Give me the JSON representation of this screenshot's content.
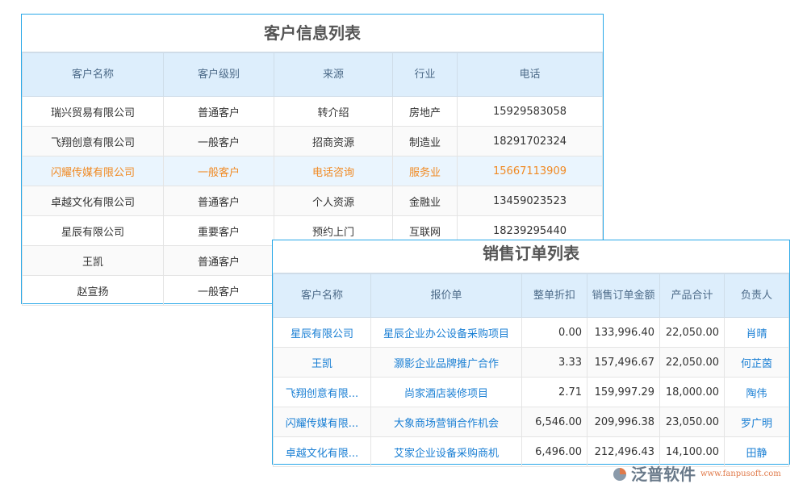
{
  "customer_table": {
    "title": "客户信息列表",
    "headers": [
      "客户名称",
      "客户级别",
      "来源",
      "行业",
      "电话"
    ],
    "rows": [
      [
        "瑞兴贸易有限公司",
        "普通客户",
        "转介绍",
        "房地产",
        "15929583058"
      ],
      [
        "飞翔创意有限公司",
        "一般客户",
        "招商资源",
        "制造业",
        "18291702324"
      ],
      [
        "闪耀传媒有限公司",
        "一般客户",
        "电话咨询",
        "服务业",
        "15667113909"
      ],
      [
        "卓越文化有限公司",
        "普通客户",
        "个人资源",
        "金融业",
        "13459023523"
      ],
      [
        "星辰有限公司",
        "重要客户",
        "预约上门",
        "互联网",
        "18239295440"
      ],
      [
        "王凯",
        "普通客户",
        "",
        "",
        ""
      ],
      [
        "赵宣扬",
        "一般客户",
        "",
        "",
        ""
      ]
    ],
    "highlight_row": 2,
    "highlight_color": "#f08a24"
  },
  "order_table": {
    "title": "销售订单列表",
    "headers": [
      "客户名称",
      "报价单",
      "整单折扣",
      "销售订单金额",
      "产品合计",
      "负责人"
    ],
    "rows": [
      [
        "星辰有限公司",
        "星辰企业办公设备采购项目",
        "0.00",
        "133,996.40",
        "22,050.00",
        "肖晴"
      ],
      [
        "王凯",
        "灏影企业品牌推广合作",
        "3.33",
        "157,496.67",
        "22,050.00",
        "何芷茵"
      ],
      [
        "飞翔创意有限...",
        "尚家酒店装修项目",
        "2.71",
        "159,997.29",
        "18,000.00",
        "陶伟"
      ],
      [
        "闪耀传媒有限...",
        "大象商场营销合作机会",
        "6,546.00",
        "209,996.38",
        "23,050.00",
        "罗广明"
      ],
      [
        "卓越文化有限...",
        "艾家企业设备采购商机",
        "6,496.00",
        "212,496.43",
        "14,100.00",
        "田静"
      ]
    ],
    "link_color": "#1a7fd4"
  },
  "logo": {
    "brand": "泛普软件",
    "url": "www.fanpusoft.com"
  }
}
